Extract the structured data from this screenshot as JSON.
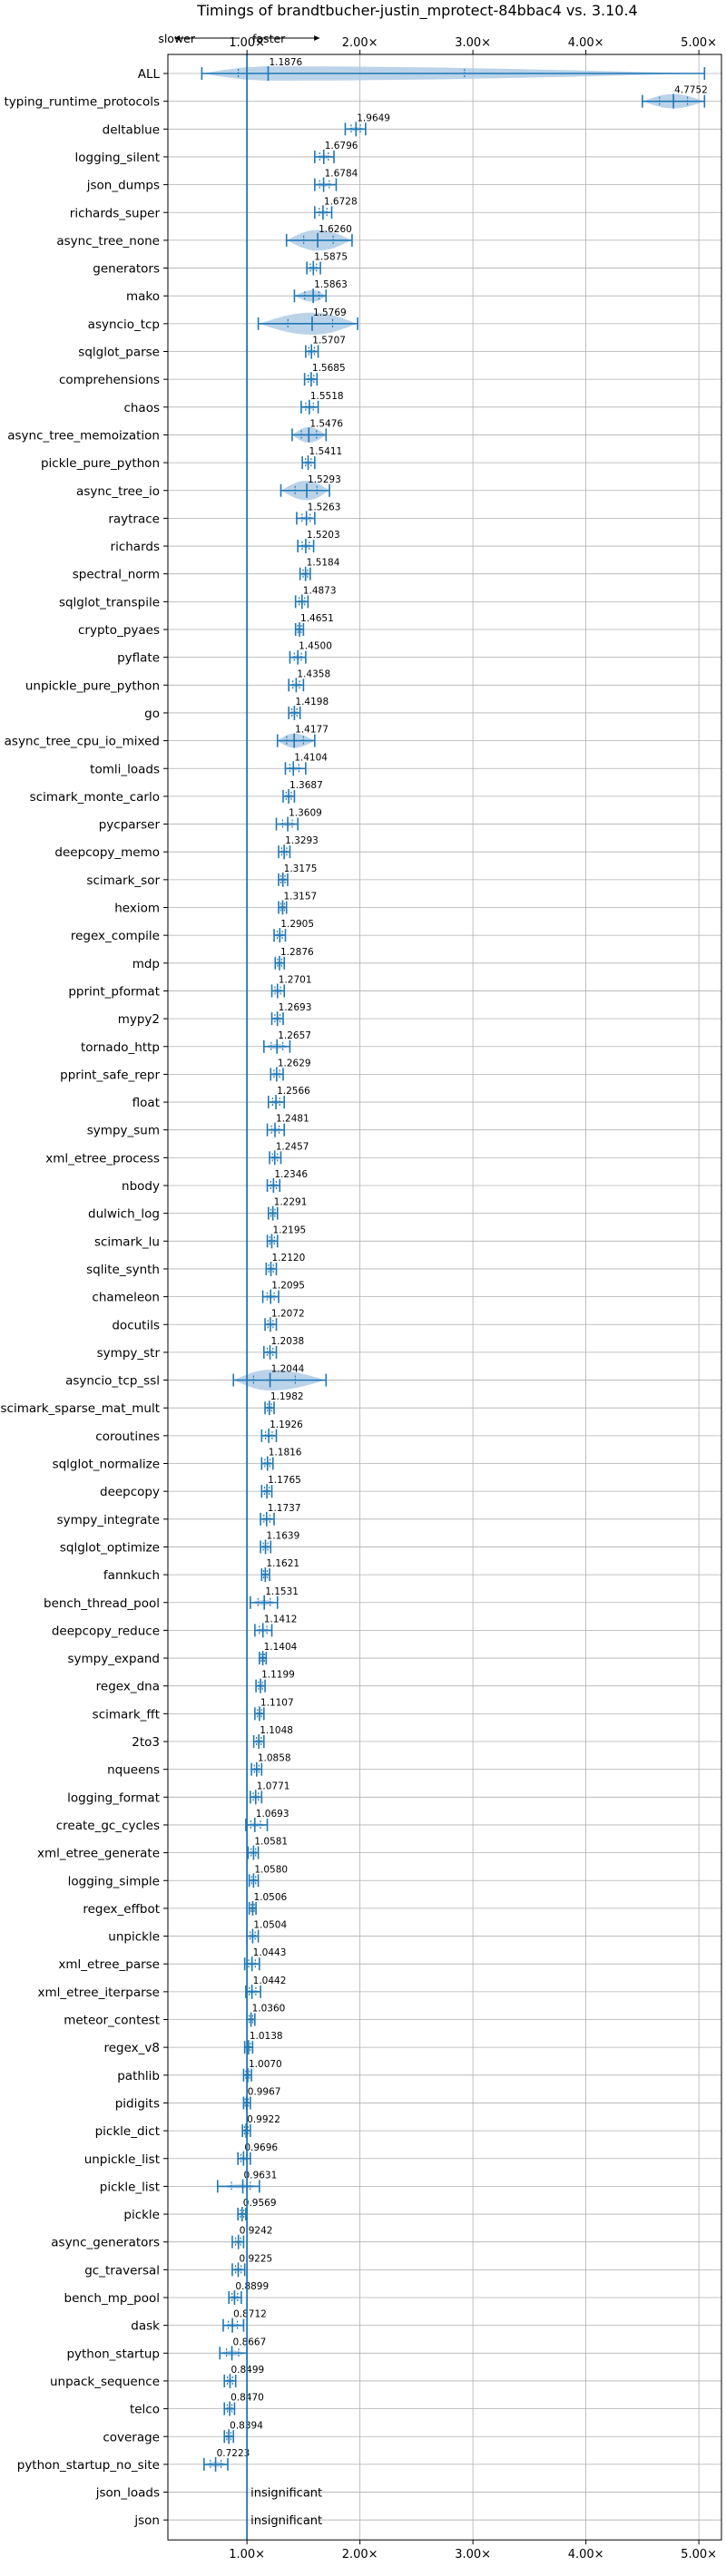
{
  "chart_data": {
    "type": "violin",
    "title": "Timings of brandtbucher-justin_mprotect-84bbac4 vs. 3.10.4",
    "direction_hint": {
      "slower": "slower",
      "faster": "faster"
    },
    "xlim": [
      0.3,
      5.2
    ],
    "x_ticks": [
      1.0,
      2.0,
      3.0,
      4.0,
      5.0
    ],
    "x_tick_labels": [
      "1.00×",
      "2.00×",
      "3.00×",
      "4.00×",
      "5.00×"
    ],
    "reference_line": 1.0,
    "insignificant_label": "insignificant",
    "benchmarks": [
      {
        "name": "ALL",
        "value": 1.1876,
        "label": "1.1876",
        "lo": 0.6,
        "hi": 5.05,
        "width": 0.55
      },
      {
        "name": "typing_runtime_protocols",
        "value": 4.7752,
        "label": "4.7752",
        "lo": 4.5,
        "hi": 5.05,
        "width": 0.55
      },
      {
        "name": "deltablue",
        "value": 1.9649,
        "label": "1.9649",
        "lo": 1.87,
        "hi": 2.05,
        "width": 0.15
      },
      {
        "name": "logging_silent",
        "value": 1.6796,
        "label": "1.6796",
        "lo": 1.6,
        "hi": 1.77,
        "width": 0.15
      },
      {
        "name": "json_dumps",
        "value": 1.6784,
        "label": "1.6784",
        "lo": 1.6,
        "hi": 1.79,
        "width": 0.15
      },
      {
        "name": "richards_super",
        "value": 1.6728,
        "label": "1.6728",
        "lo": 1.6,
        "hi": 1.75,
        "width": 0.15
      },
      {
        "name": "async_tree_none",
        "value": 1.626,
        "label": "1.6260",
        "lo": 1.35,
        "hi": 1.93,
        "width": 0.8
      },
      {
        "name": "generators",
        "value": 1.5875,
        "label": "1.5875",
        "lo": 1.53,
        "hi": 1.65,
        "width": 0.15
      },
      {
        "name": "mako",
        "value": 1.5863,
        "label": "1.5863",
        "lo": 1.42,
        "hi": 1.7,
        "width": 0.45
      },
      {
        "name": "asyncio_tcp",
        "value": 1.5769,
        "label": "1.5769",
        "lo": 1.1,
        "hi": 1.98,
        "width": 0.85
      },
      {
        "name": "sqlglot_parse",
        "value": 1.5707,
        "label": "1.5707",
        "lo": 1.52,
        "hi": 1.63,
        "width": 0.15
      },
      {
        "name": "comprehensions",
        "value": 1.5685,
        "label": "1.5685",
        "lo": 1.51,
        "hi": 1.62,
        "width": 0.15
      },
      {
        "name": "chaos",
        "value": 1.5518,
        "label": "1.5518",
        "lo": 1.48,
        "hi": 1.63,
        "width": 0.15
      },
      {
        "name": "async_tree_memoization",
        "value": 1.5476,
        "label": "1.5476",
        "lo": 1.4,
        "hi": 1.7,
        "width": 0.6
      },
      {
        "name": "pickle_pure_python",
        "value": 1.5411,
        "label": "1.5411",
        "lo": 1.49,
        "hi": 1.6,
        "width": 0.15
      },
      {
        "name": "async_tree_io",
        "value": 1.5293,
        "label": "1.5293",
        "lo": 1.3,
        "hi": 1.73,
        "width": 0.75
      },
      {
        "name": "raytrace",
        "value": 1.5263,
        "label": "1.5263",
        "lo": 1.44,
        "hi": 1.6,
        "width": 0.15
      },
      {
        "name": "richards",
        "value": 1.5203,
        "label": "1.5203",
        "lo": 1.45,
        "hi": 1.59,
        "width": 0.15
      },
      {
        "name": "spectral_norm",
        "value": 1.5184,
        "label": "1.5184",
        "lo": 1.47,
        "hi": 1.56,
        "width": 0.15
      },
      {
        "name": "sqlglot_transpile",
        "value": 1.4873,
        "label": "1.4873",
        "lo": 1.43,
        "hi": 1.54,
        "width": 0.15
      },
      {
        "name": "crypto_pyaes",
        "value": 1.4651,
        "label": "1.4651",
        "lo": 1.43,
        "hi": 1.5,
        "width": 0.15
      },
      {
        "name": "pyflate",
        "value": 1.45,
        "label": "1.4500",
        "lo": 1.38,
        "hi": 1.52,
        "width": 0.15
      },
      {
        "name": "unpickle_pure_python",
        "value": 1.4358,
        "label": "1.4358",
        "lo": 1.37,
        "hi": 1.5,
        "width": 0.15
      },
      {
        "name": "go",
        "value": 1.4198,
        "label": "1.4198",
        "lo": 1.37,
        "hi": 1.47,
        "width": 0.15
      },
      {
        "name": "async_tree_cpu_io_mixed",
        "value": 1.4177,
        "label": "1.4177",
        "lo": 1.27,
        "hi": 1.6,
        "width": 0.55
      },
      {
        "name": "tomli_loads",
        "value": 1.4104,
        "label": "1.4104",
        "lo": 1.34,
        "hi": 1.52,
        "width": 0.15
      },
      {
        "name": "scimark_monte_carlo",
        "value": 1.3687,
        "label": "1.3687",
        "lo": 1.32,
        "hi": 1.42,
        "width": 0.15
      },
      {
        "name": "pycparser",
        "value": 1.3609,
        "label": "1.3609",
        "lo": 1.26,
        "hi": 1.45,
        "width": 0.15
      },
      {
        "name": "deepcopy_memo",
        "value": 1.3293,
        "label": "1.3293",
        "lo": 1.28,
        "hi": 1.38,
        "width": 0.15
      },
      {
        "name": "scimark_sor",
        "value": 1.3175,
        "label": "1.3175",
        "lo": 1.28,
        "hi": 1.36,
        "width": 0.15
      },
      {
        "name": "hexiom",
        "value": 1.3157,
        "label": "1.3157",
        "lo": 1.28,
        "hi": 1.35,
        "width": 0.15
      },
      {
        "name": "regex_compile",
        "value": 1.2905,
        "label": "1.2905",
        "lo": 1.24,
        "hi": 1.34,
        "width": 0.15
      },
      {
        "name": "mdp",
        "value": 1.2876,
        "label": "1.2876",
        "lo": 1.25,
        "hi": 1.33,
        "width": 0.15
      },
      {
        "name": "pprint_pformat",
        "value": 1.2701,
        "label": "1.2701",
        "lo": 1.22,
        "hi": 1.33,
        "width": 0.15
      },
      {
        "name": "mypy2",
        "value": 1.2693,
        "label": "1.2693",
        "lo": 1.22,
        "hi": 1.32,
        "width": 0.15
      },
      {
        "name": "tornado_http",
        "value": 1.2657,
        "label": "1.2657",
        "lo": 1.15,
        "hi": 1.38,
        "width": 0.2
      },
      {
        "name": "pprint_safe_repr",
        "value": 1.2629,
        "label": "1.2629",
        "lo": 1.21,
        "hi": 1.32,
        "width": 0.15
      },
      {
        "name": "float",
        "value": 1.2566,
        "label": "1.2566",
        "lo": 1.19,
        "hi": 1.33,
        "width": 0.15
      },
      {
        "name": "sympy_sum",
        "value": 1.2481,
        "label": "1.2481",
        "lo": 1.18,
        "hi": 1.33,
        "width": 0.15
      },
      {
        "name": "xml_etree_process",
        "value": 1.2457,
        "label": "1.2457",
        "lo": 1.2,
        "hi": 1.3,
        "width": 0.15
      },
      {
        "name": "nbody",
        "value": 1.2346,
        "label": "1.2346",
        "lo": 1.18,
        "hi": 1.29,
        "width": 0.15
      },
      {
        "name": "dulwich_log",
        "value": 1.2291,
        "label": "1.2291",
        "lo": 1.19,
        "hi": 1.27,
        "width": 0.15
      },
      {
        "name": "scimark_lu",
        "value": 1.2195,
        "label": "1.2195",
        "lo": 1.18,
        "hi": 1.27,
        "width": 0.15
      },
      {
        "name": "sqlite_synth",
        "value": 1.212,
        "label": "1.2120",
        "lo": 1.17,
        "hi": 1.26,
        "width": 0.15
      },
      {
        "name": "chameleon",
        "value": 1.2095,
        "label": "1.2095",
        "lo": 1.14,
        "hi": 1.28,
        "width": 0.15
      },
      {
        "name": "docutils",
        "value": 1.2072,
        "label": "1.2072",
        "lo": 1.16,
        "hi": 1.26,
        "width": 0.15
      },
      {
        "name": "sympy_str",
        "value": 1.2038,
        "label": "1.2038",
        "lo": 1.15,
        "hi": 1.26,
        "width": 0.15
      },
      {
        "name": "asyncio_tcp_ssl",
        "value": 1.2044,
        "label": "1.2044",
        "lo": 0.88,
        "hi": 1.7,
        "width": 0.8
      },
      {
        "name": "scimark_sparse_mat_mult",
        "value": 1.1982,
        "label": "1.1982",
        "lo": 1.16,
        "hi": 1.24,
        "width": 0.15
      },
      {
        "name": "coroutines",
        "value": 1.1926,
        "label": "1.1926",
        "lo": 1.13,
        "hi": 1.26,
        "width": 0.15
      },
      {
        "name": "sqlglot_normalize",
        "value": 1.1816,
        "label": "1.1816",
        "lo": 1.13,
        "hi": 1.23,
        "width": 0.15
      },
      {
        "name": "deepcopy",
        "value": 1.1765,
        "label": "1.1765",
        "lo": 1.13,
        "hi": 1.22,
        "width": 0.15
      },
      {
        "name": "sympy_integrate",
        "value": 1.1737,
        "label": "1.1737",
        "lo": 1.12,
        "hi": 1.24,
        "width": 0.15
      },
      {
        "name": "sqlglot_optimize",
        "value": 1.1639,
        "label": "1.1639",
        "lo": 1.12,
        "hi": 1.21,
        "width": 0.15
      },
      {
        "name": "fannkuch",
        "value": 1.1621,
        "label": "1.1621",
        "lo": 1.13,
        "hi": 1.2,
        "width": 0.15
      },
      {
        "name": "bench_thread_pool",
        "value": 1.1531,
        "label": "1.1531",
        "lo": 1.03,
        "hi": 1.27,
        "width": 0.2
      },
      {
        "name": "deepcopy_reduce",
        "value": 1.1412,
        "label": "1.1412",
        "lo": 1.07,
        "hi": 1.22,
        "width": 0.15
      },
      {
        "name": "sympy_expand",
        "value": 1.1404,
        "label": "1.1404",
        "lo": 1.11,
        "hi": 1.17,
        "width": 0.15
      },
      {
        "name": "regex_dna",
        "value": 1.1199,
        "label": "1.1199",
        "lo": 1.08,
        "hi": 1.16,
        "width": 0.15
      },
      {
        "name": "scimark_fft",
        "value": 1.1107,
        "label": "1.1107",
        "lo": 1.07,
        "hi": 1.15,
        "width": 0.15
      },
      {
        "name": "2to3",
        "value": 1.1048,
        "label": "1.1048",
        "lo": 1.06,
        "hi": 1.15,
        "width": 0.15
      },
      {
        "name": "nqueens",
        "value": 1.0858,
        "label": "1.0858",
        "lo": 1.04,
        "hi": 1.13,
        "width": 0.15
      },
      {
        "name": "logging_format",
        "value": 1.0771,
        "label": "1.0771",
        "lo": 1.03,
        "hi": 1.13,
        "width": 0.15
      },
      {
        "name": "create_gc_cycles",
        "value": 1.0693,
        "label": "1.0693",
        "lo": 0.99,
        "hi": 1.18,
        "width": 0.15
      },
      {
        "name": "xml_etree_generate",
        "value": 1.0581,
        "label": "1.0581",
        "lo": 1.01,
        "hi": 1.1,
        "width": 0.15
      },
      {
        "name": "logging_simple",
        "value": 1.058,
        "label": "1.0580",
        "lo": 1.02,
        "hi": 1.1,
        "width": 0.15
      },
      {
        "name": "regex_effbot",
        "value": 1.0506,
        "label": "1.0506",
        "lo": 1.02,
        "hi": 1.08,
        "width": 0.15
      },
      {
        "name": "unpickle",
        "value": 1.0504,
        "label": "1.0504",
        "lo": 1.0,
        "hi": 1.1,
        "width": 0.15
      },
      {
        "name": "xml_etree_parse",
        "value": 1.0443,
        "label": "1.0443",
        "lo": 0.98,
        "hi": 1.11,
        "width": 0.15
      },
      {
        "name": "xml_etree_iterparse",
        "value": 1.0442,
        "label": "1.0442",
        "lo": 0.99,
        "hi": 1.12,
        "width": 0.15
      },
      {
        "name": "meteor_contest",
        "value": 1.036,
        "label": "1.0360",
        "lo": 1.0,
        "hi": 1.07,
        "width": 0.15
      },
      {
        "name": "regex_v8",
        "value": 1.0138,
        "label": "1.0138",
        "lo": 0.98,
        "hi": 1.05,
        "width": 0.15
      },
      {
        "name": "pathlib",
        "value": 1.007,
        "label": "1.0070",
        "lo": 0.97,
        "hi": 1.04,
        "width": 0.15
      },
      {
        "name": "pidigits",
        "value": 0.9967,
        "label": "0.9967",
        "lo": 0.97,
        "hi": 1.03,
        "width": 0.15
      },
      {
        "name": "pickle_dict",
        "value": 0.9922,
        "label": "0.9922",
        "lo": 0.96,
        "hi": 1.03,
        "width": 0.15
      },
      {
        "name": "unpickle_list",
        "value": 0.9696,
        "label": "0.9696",
        "lo": 0.92,
        "hi": 1.03,
        "width": 0.15
      },
      {
        "name": "pickle_list",
        "value": 0.9631,
        "label": "0.9631",
        "lo": 0.74,
        "hi": 1.11,
        "width": 0.15
      },
      {
        "name": "pickle",
        "value": 0.9569,
        "label": "0.9569",
        "lo": 0.92,
        "hi": 0.99,
        "width": 0.15
      },
      {
        "name": "async_generators",
        "value": 0.9242,
        "label": "0.9242",
        "lo": 0.87,
        "hi": 0.97,
        "width": 0.15
      },
      {
        "name": "gc_traversal",
        "value": 0.9225,
        "label": "0.9225",
        "lo": 0.87,
        "hi": 0.98,
        "width": 0.15
      },
      {
        "name": "bench_mp_pool",
        "value": 0.8899,
        "label": "0.8899",
        "lo": 0.84,
        "hi": 0.95,
        "width": 0.15
      },
      {
        "name": "dask",
        "value": 0.8712,
        "label": "0.8712",
        "lo": 0.79,
        "hi": 0.97,
        "width": 0.15
      },
      {
        "name": "python_startup",
        "value": 0.8667,
        "label": "0.8667",
        "lo": 0.76,
        "hi": 1.0,
        "width": 0.2
      },
      {
        "name": "unpack_sequence",
        "value": 0.8499,
        "label": "0.8499",
        "lo": 0.8,
        "hi": 0.9,
        "width": 0.15
      },
      {
        "name": "telco",
        "value": 0.847,
        "label": "0.8470",
        "lo": 0.8,
        "hi": 0.89,
        "width": 0.15
      },
      {
        "name": "coverage",
        "value": 0.8394,
        "label": "0.8394",
        "lo": 0.8,
        "hi": 0.88,
        "width": 0.15
      },
      {
        "name": "python_startup_no_site",
        "value": 0.7223,
        "label": "0.7223",
        "lo": 0.62,
        "hi": 0.83,
        "width": 0.2
      },
      {
        "name": "json_loads",
        "insignificant": true
      },
      {
        "name": "json",
        "insignificant": true
      }
    ]
  },
  "colors": {
    "violin": "#aac8e4",
    "accent": "#1f77b4",
    "grid": "#b0b0b0",
    "median": "#e06666"
  }
}
